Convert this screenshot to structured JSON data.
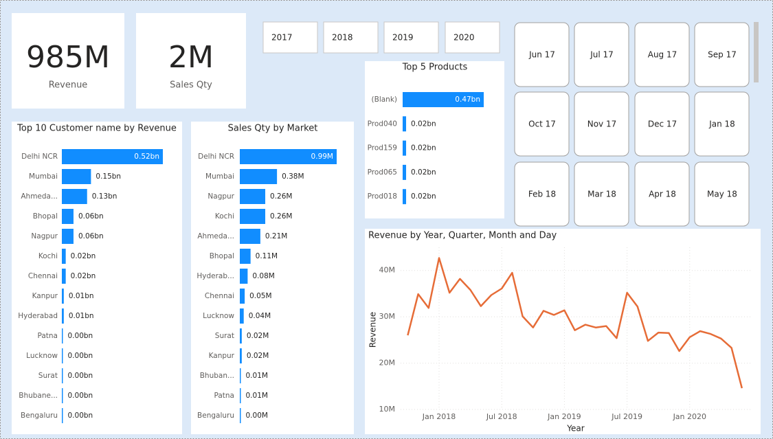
{
  "cards": [
    {
      "value": "985M",
      "label": "Revenue"
    },
    {
      "value": "2M",
      "label": "Sales Qty"
    }
  ],
  "year_slicer": {
    "items": [
      "2017",
      "2018",
      "2019",
      "2020"
    ]
  },
  "month_slicer": {
    "items": [
      "Jun 17",
      "Jul 17",
      "Aug 17",
      "Sep 17",
      "Oct 17",
      "Nov 17",
      "Dec 17",
      "Jan 18",
      "Feb 18",
      "Mar 18",
      "Apr 18",
      "May 18"
    ]
  },
  "chart_data": [
    {
      "type": "bar",
      "horizontal": true,
      "title": "Top 10 Customer name by Revenue",
      "color": "#118dff",
      "categories": [
        "Delhi NCR",
        "Mumbai",
        "Ahmeda...",
        "Bhopal",
        "Nagpur",
        "Kochi",
        "Chennai",
        "Kanpur",
        "Hyderabad",
        "Patna",
        "Lucknow",
        "Surat",
        "Bhubane...",
        "Bengaluru"
      ],
      "values": [
        0.52,
        0.15,
        0.13,
        0.06,
        0.06,
        0.02,
        0.02,
        0.01,
        0.01,
        0,
        0,
        0,
        0,
        0
      ],
      "value_labels": [
        "0.52bn",
        "0.15bn",
        "0.13bn",
        "0.06bn",
        "0.06bn",
        "0.02bn",
        "0.02bn",
        "0.01bn",
        "0.01bn",
        "0.00bn",
        "0.00bn",
        "0.00bn",
        "0.00bn",
        "0.00bn"
      ]
    },
    {
      "type": "bar",
      "horizontal": true,
      "title": "Sales Qty by Market",
      "color": "#118dff",
      "categories": [
        "Delhi NCR",
        "Mumbai",
        "Nagpur",
        "Kochi",
        "Ahmeda...",
        "Bhopal",
        "Hyderab...",
        "Chennai",
        "Lucknow",
        "Surat",
        "Kanpur",
        "Bhuban...",
        "Patna",
        "Bengaluru"
      ],
      "values": [
        0.99,
        0.38,
        0.26,
        0.26,
        0.21,
        0.11,
        0.08,
        0.05,
        0.04,
        0.02,
        0.02,
        0.01,
        0.01,
        0
      ],
      "value_labels": [
        "0.99M",
        "0.38M",
        "0.26M",
        "0.26M",
        "0.21M",
        "0.11M",
        "0.08M",
        "0.05M",
        "0.04M",
        "0.02M",
        "0.02M",
        "0.01M",
        "0.01M",
        "0.00M"
      ]
    },
    {
      "type": "bar",
      "horizontal": true,
      "title": "Top 5 Products",
      "color": "#118dff",
      "categories": [
        "(Blank)",
        "Prod040",
        "Prod159",
        "Prod065",
        "Prod018"
      ],
      "values": [
        0.47,
        0.02,
        0.02,
        0.02,
        0.02
      ],
      "value_labels": [
        "0.47bn",
        "0.02bn",
        "0.02bn",
        "0.02bn",
        "0.02bn"
      ]
    },
    {
      "type": "line",
      "title": "Revenue by Year, Quarter, Month and Day",
      "x_label": "Year",
      "y_label": "Revenue",
      "color": "#e66c37",
      "x": [
        "2017-10",
        "2017-11",
        "2017-12",
        "2018-01",
        "2018-02",
        "2018-03",
        "2018-04",
        "2018-05",
        "2018-06",
        "2018-07",
        "2018-08",
        "2018-09",
        "2018-10",
        "2018-11",
        "2018-12",
        "2019-01",
        "2019-02",
        "2019-03",
        "2019-04",
        "2019-05",
        "2019-06",
        "2019-07",
        "2019-08",
        "2019-09",
        "2019-10",
        "2019-11",
        "2019-12",
        "2020-01",
        "2020-02",
        "2020-03",
        "2020-04",
        "2020-05",
        "2020-06"
      ],
      "values": [
        26.0,
        34.9,
        31.9,
        42.7,
        35.2,
        38.2,
        35.8,
        32.3,
        34.7,
        36.1,
        39.5,
        30.1,
        27.7,
        31.3,
        30.4,
        31.4,
        27.1,
        28.3,
        27.7,
        28.0,
        25.4,
        35.2,
        32.2,
        24.8,
        26.6,
        26.5,
        22.6,
        25.6,
        26.9,
        26.3,
        25.3,
        23.3,
        14.6
      ],
      "xlim": [
        "2017-08",
        "2020-07"
      ],
      "xticks": [
        {
          "value": "2018-01",
          "label": "Jan 2018"
        },
        {
          "value": "2018-07",
          "label": "Jul 2018"
        },
        {
          "value": "2019-01",
          "label": "Jan 2019"
        },
        {
          "value": "2019-07",
          "label": "Jul 2019"
        },
        {
          "value": "2020-01",
          "label": "Jan 2020"
        }
      ],
      "ylim": [
        10,
        45
      ],
      "yticks": [
        {
          "value": 10,
          "label": "10M"
        },
        {
          "value": 20,
          "label": "20M"
        },
        {
          "value": 30,
          "label": "30M"
        },
        {
          "value": 40,
          "label": "40M"
        }
      ],
      "grid": true
    }
  ]
}
